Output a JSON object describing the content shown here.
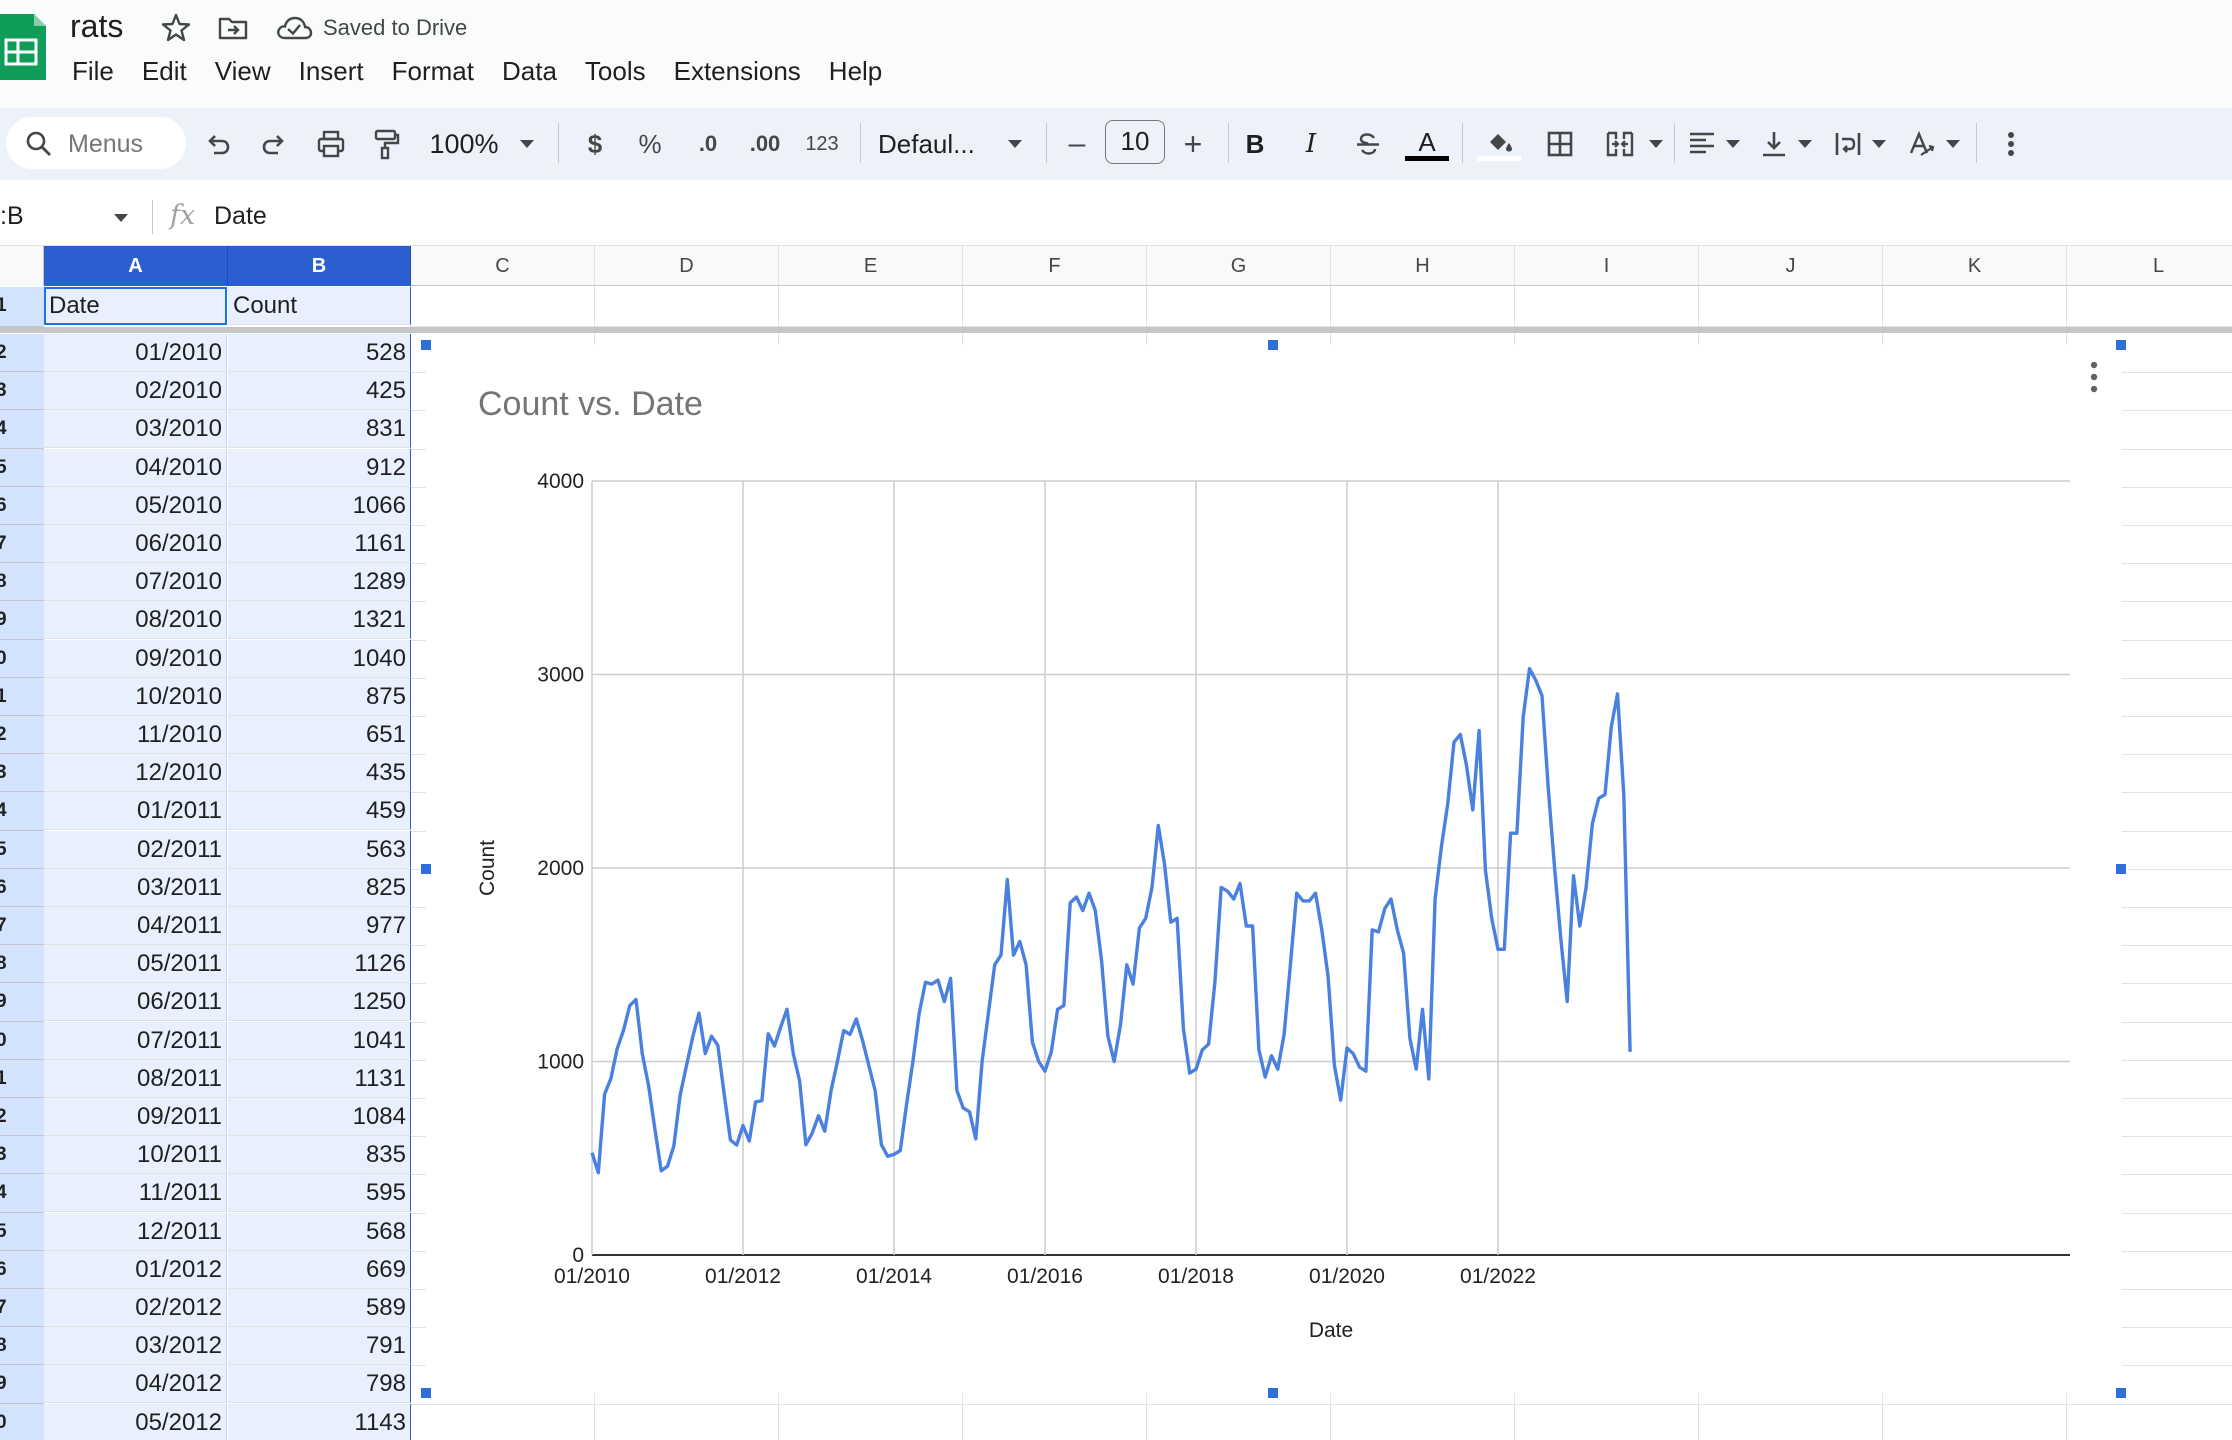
{
  "app": {
    "doc_title": "rats",
    "save_status": "Saved to Drive",
    "brand_color": "#0f9d58"
  },
  "menu": [
    "File",
    "Edit",
    "View",
    "Insert",
    "Format",
    "Data",
    "Tools",
    "Extensions",
    "Help"
  ],
  "toolbar": {
    "search_placeholder": "Menus",
    "zoom": "100%",
    "currency": "$",
    "percent": "%",
    "decrease_decimal": ".0",
    "increase_decimal": ".00",
    "number_format": "123",
    "font": "Defaul...",
    "font_size": "10",
    "minus": "–",
    "plus": "+",
    "bold": "B",
    "italic": "I",
    "text_color_letter": "A",
    "icons": [
      "undo-icon",
      "redo-icon",
      "print-icon",
      "paint-format-icon",
      "strikethrough-icon",
      "fill-color-icon",
      "borders-icon",
      "merge-cells-icon",
      "align-left-icon",
      "vertical-align-icon",
      "text-wrap-icon",
      "text-rotation-icon",
      "more-vert-icon"
    ]
  },
  "formula_bar": {
    "name_box": ":B",
    "fx": "fx",
    "formula": "Date"
  },
  "columns": [
    "A",
    "B",
    "C",
    "D",
    "E",
    "F",
    "G",
    "H",
    "I",
    "J",
    "K",
    "L"
  ],
  "selected_columns": [
    "A",
    "B"
  ],
  "row_numbers": [
    "1",
    "2",
    "3",
    "4",
    "5",
    "6",
    "7",
    "8",
    "9",
    "0",
    "1",
    "2",
    "3",
    "4",
    "5",
    "6",
    "7",
    "8",
    "9",
    "0",
    "1",
    "2",
    "3",
    "4",
    "5",
    "6",
    "7",
    "8",
    "9",
    "0"
  ],
  "header_row": {
    "a": "Date",
    "b": "Count"
  },
  "rows": [
    {
      "date": "01/2010",
      "count": "528"
    },
    {
      "date": "02/2010",
      "count": "425"
    },
    {
      "date": "03/2010",
      "count": "831"
    },
    {
      "date": "04/2010",
      "count": "912"
    },
    {
      "date": "05/2010",
      "count": "1066"
    },
    {
      "date": "06/2010",
      "count": "1161"
    },
    {
      "date": "07/2010",
      "count": "1289"
    },
    {
      "date": "08/2010",
      "count": "1321"
    },
    {
      "date": "09/2010",
      "count": "1040"
    },
    {
      "date": "10/2010",
      "count": "875"
    },
    {
      "date": "11/2010",
      "count": "651"
    },
    {
      "date": "12/2010",
      "count": "435"
    },
    {
      "date": "01/2011",
      "count": "459"
    },
    {
      "date": "02/2011",
      "count": "563"
    },
    {
      "date": "03/2011",
      "count": "825"
    },
    {
      "date": "04/2011",
      "count": "977"
    },
    {
      "date": "05/2011",
      "count": "1126"
    },
    {
      "date": "06/2011",
      "count": "1250"
    },
    {
      "date": "07/2011",
      "count": "1041"
    },
    {
      "date": "08/2011",
      "count": "1131"
    },
    {
      "date": "09/2011",
      "count": "1084"
    },
    {
      "date": "10/2011",
      "count": "835"
    },
    {
      "date": "11/2011",
      "count": "595"
    },
    {
      "date": "12/2011",
      "count": "568"
    },
    {
      "date": "01/2012",
      "count": "669"
    },
    {
      "date": "02/2012",
      "count": "589"
    },
    {
      "date": "03/2012",
      "count": "791"
    },
    {
      "date": "04/2012",
      "count": "798"
    },
    {
      "date": "05/2012",
      "count": "1143"
    }
  ],
  "chart_data": {
    "type": "line",
    "title": "Count vs. Date",
    "xlabel": "Date",
    "ylabel": "Count",
    "ylim": [
      0,
      4000
    ],
    "yticks": [
      "0",
      "1000",
      "2000",
      "3000",
      "4000"
    ],
    "xticks": [
      "01/2010",
      "01/2012",
      "01/2014",
      "01/2016",
      "01/2018",
      "01/2020",
      "01/2022"
    ],
    "x_start": "01/2010",
    "x_end": "11/2023",
    "grid": true,
    "series_color": "#4a80e0",
    "series": [
      {
        "values": [
          528,
          425,
          831,
          912,
          1066,
          1161,
          1289,
          1321,
          1040,
          875,
          651,
          435,
          459,
          563,
          825,
          977,
          1126,
          1250,
          1041,
          1131,
          1084,
          835,
          595,
          568,
          669,
          589,
          791,
          798,
          1143,
          1080,
          1180,
          1270,
          1040,
          900,
          570,
          630,
          720,
          640,
          850,
          1000,
          1160,
          1140,
          1220,
          1110,
          980,
          850,
          570,
          510,
          520,
          540,
          780,
          1000,
          1250,
          1410,
          1400,
          1420,
          1310,
          1430,
          850,
          760,
          740,
          600,
          1000,
          1250,
          1500,
          1550,
          1940,
          1550,
          1620,
          1500,
          1100,
          1000,
          950,
          1050,
          1270,
          1290,
          1820,
          1850,
          1780,
          1870,
          1780,
          1520,
          1130,
          1000,
          1190,
          1500,
          1400,
          1690,
          1740,
          1900,
          2220,
          2020,
          1720,
          1740,
          1170,
          940,
          960,
          1060,
          1090,
          1410,
          1900,
          1880,
          1840,
          1920,
          1700,
          1700,
          1060,
          920,
          1030,
          960,
          1140,
          1500,
          1870,
          1830,
          1830,
          1870,
          1680,
          1440,
          980,
          800,
          1070,
          1040,
          970,
          950,
          1680,
          1670,
          1790,
          1840,
          1680,
          1560,
          1120,
          960,
          1270,
          910,
          1840,
          2110,
          2330,
          2650,
          2690,
          2530,
          2300,
          2710,
          1990,
          1740,
          1580,
          1580,
          2180,
          2180,
          2780,
          3030,
          2970,
          2890,
          2410,
          2000,
          1630,
          1310,
          1960,
          1700,
          1900,
          2230,
          2360,
          2380,
          2730,
          2900,
          2380,
          1050
        ]
      }
    ]
  }
}
